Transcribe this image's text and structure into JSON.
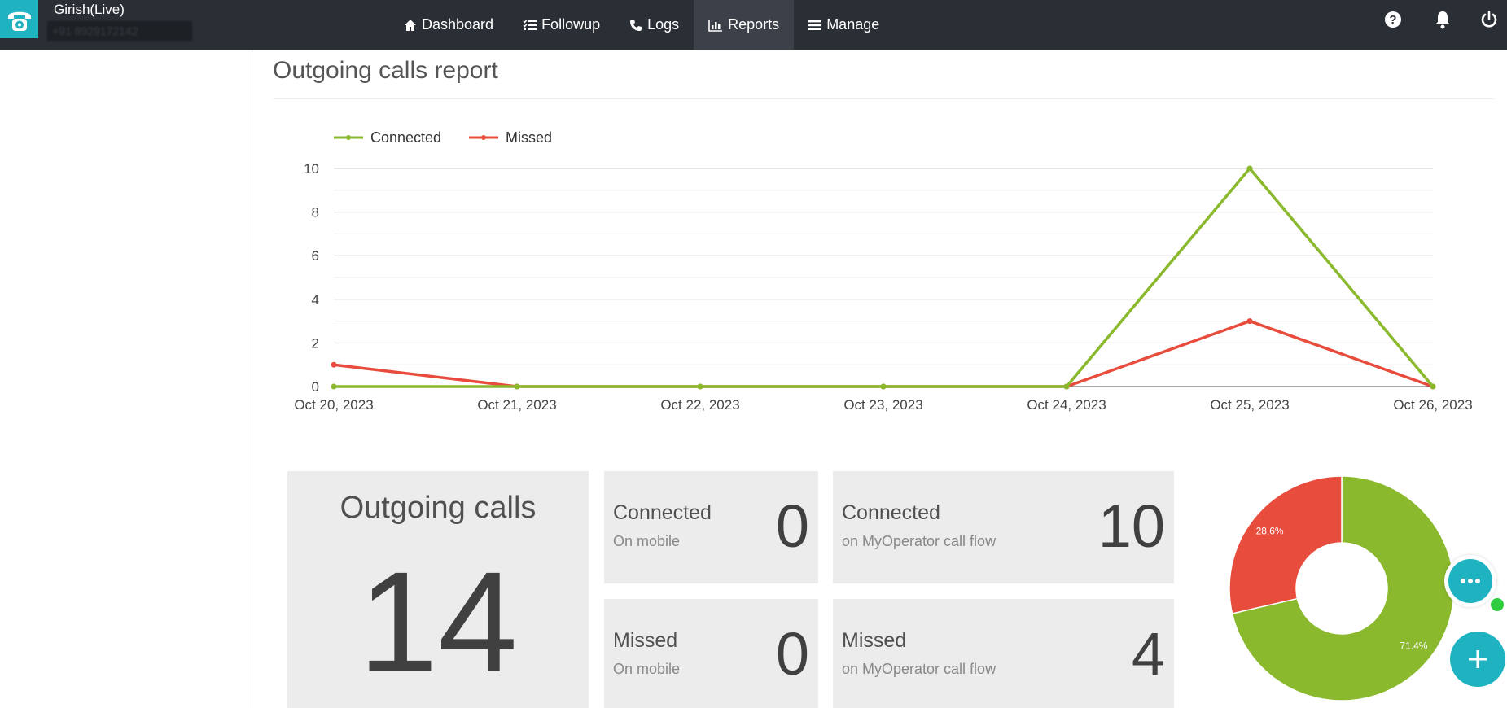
{
  "header": {
    "account_name": "Girish(Live)",
    "account_phone": "+91 8929172142"
  },
  "nav": {
    "items": [
      {
        "label": "Dashboard",
        "icon": "home-icon"
      },
      {
        "label": "Followup",
        "icon": "checklist-icon"
      },
      {
        "label": "Logs",
        "icon": "phone-icon"
      },
      {
        "label": "Reports",
        "icon": "bar-chart-icon",
        "active": true
      },
      {
        "label": "Manage",
        "icon": "menu-icon"
      }
    ],
    "right_icons": [
      "help-icon",
      "bell-icon",
      "power-icon"
    ]
  },
  "page": {
    "title": "Outgoing calls report"
  },
  "chart_data": [
    {
      "type": "line",
      "x": [
        "Oct 20, 2023",
        "Oct 21, 2023",
        "Oct 22, 2023",
        "Oct 23, 2023",
        "Oct 24, 2023",
        "Oct 25, 2023",
        "Oct 26, 2023"
      ],
      "series": [
        {
          "name": "Connected",
          "color": "#8ab92d",
          "values": [
            0,
            0,
            0,
            0,
            0,
            10,
            0
          ]
        },
        {
          "name": "Missed",
          "color": "#e84c3d",
          "values": [
            1,
            0,
            0,
            0,
            0,
            3,
            0
          ]
        }
      ],
      "yticks": [
        0,
        2,
        4,
        6,
        8,
        10
      ],
      "ylim": [
        0,
        10
      ],
      "legend": "top-left",
      "grid": true
    },
    {
      "type": "pie",
      "donut": true,
      "slices": [
        {
          "name": "Connected",
          "value": 71.4,
          "label": "71.4%",
          "color": "#8ab92d"
        },
        {
          "name": "Missed",
          "value": 28.6,
          "label": "28.6%",
          "color": "#e84c3d"
        }
      ]
    }
  ],
  "stats": {
    "total": {
      "label": "Outgoing calls",
      "value": "14"
    },
    "connected_mobile": {
      "title": "Connected",
      "sub": "On mobile",
      "value": "0"
    },
    "connected_flow": {
      "title": "Connected",
      "sub": "on MyOperator call flow",
      "value": "10"
    },
    "missed_mobile": {
      "title": "Missed",
      "sub": "On mobile",
      "value": "0"
    },
    "missed_flow": {
      "title": "Missed",
      "sub": "on MyOperator call flow",
      "value": "4"
    }
  },
  "colors": {
    "brand": "#1fb3c2",
    "navbar": "#2a2e35",
    "connected": "#8ab92d",
    "missed": "#e84c3d"
  }
}
